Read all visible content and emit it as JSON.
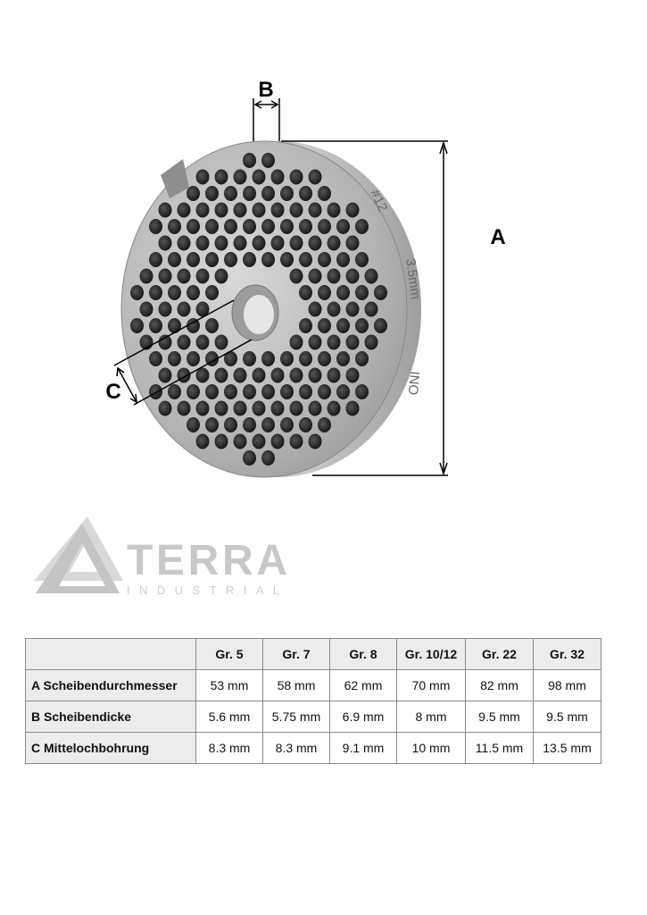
{
  "diagram": {
    "labels": {
      "A": "A",
      "B": "B",
      "C": "C"
    },
    "engraving": [
      "#12",
      "3.5mm",
      "INO"
    ],
    "disc_color": "#b9b9b9",
    "line_color": "#000000"
  },
  "logo": {
    "name": "TERRA",
    "subtitle": "INDUSTRIAL",
    "color": "#c8c8c8"
  },
  "table": {
    "columns": [
      "Gr. 5",
      "Gr. 7",
      "Gr. 8",
      "Gr. 10/12",
      "Gr. 22",
      "Gr. 32"
    ],
    "rows": [
      {
        "label": "A Scheibendurchmesser",
        "values": [
          "53 mm",
          "58 mm",
          "62 mm",
          "70 mm",
          "82 mm",
          "98 mm"
        ]
      },
      {
        "label": "B Scheibendicke",
        "values": [
          "5.6 mm",
          "5.75 mm",
          "6.9 mm",
          "8 mm",
          "9.5 mm",
          "9.5 mm"
        ]
      },
      {
        "label": "C Mittelochbohrung",
        "values": [
          "8.3 mm",
          "8.3 mm",
          "9.1 mm",
          "10 mm",
          "11.5 mm",
          "13.5 mm"
        ]
      }
    ]
  }
}
